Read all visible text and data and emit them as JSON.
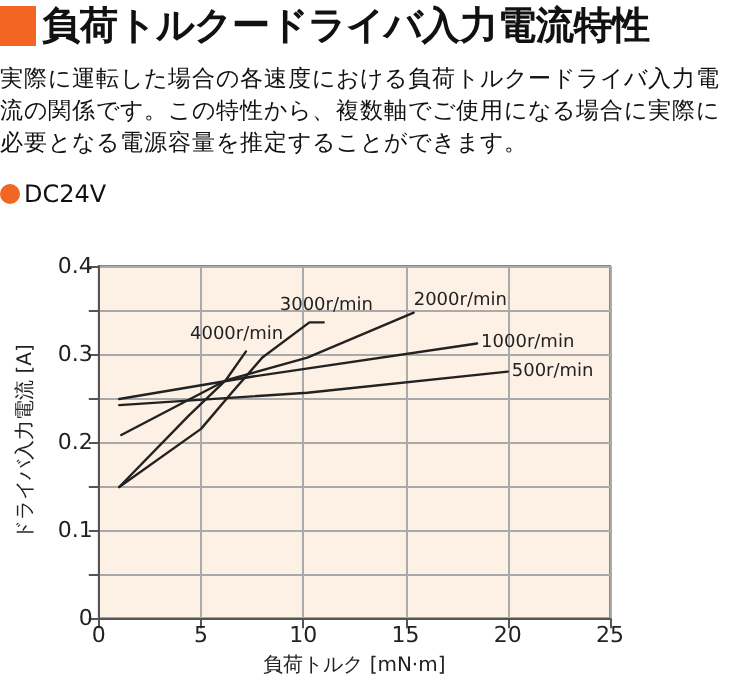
{
  "chart_data": {
    "type": "line",
    "title": "負荷トルクードライバ入力電流特性",
    "subtitle": "実際に運転した場合の各速度における負荷トルクードライバ入力電流の関係です。この特性から、複数軸でご使用になる場合に実際に必要となる電源容量を推定することができます。",
    "legend_title": "DC24V",
    "xlabel": "負荷トルク [mN·m]",
    "ylabel": "ドライバ入力電流 [A]",
    "xlim": [
      0,
      25
    ],
    "xticks": [
      0,
      5,
      10,
      15,
      20,
      25
    ],
    "ylim": [
      0,
      0.4
    ],
    "yticks": [
      0,
      {
        "value": 0.05,
        "label": null
      },
      0.1,
      {
        "value": 0.15,
        "label": null
      },
      0.2,
      {
        "value": 0.25,
        "label": null
      },
      0.3,
      {
        "value": 0.35,
        "label": null
      },
      0.4
    ],
    "grid": true,
    "marker": "none",
    "line_style": "solid",
    "series": [
      {
        "name": "500r/min",
        "color": "#222222",
        "x": [
          1,
          10.2,
          20
        ],
        "values": [
          0.242,
          0.256,
          0.28
        ]
      },
      {
        "name": "1000r/min",
        "color": "#222222",
        "x": [
          1,
          7.4,
          18.5
        ],
        "values": [
          0.249,
          0.274,
          0.312
        ]
      },
      {
        "name": "2000r/min",
        "color": "#222222",
        "x": [
          1.1,
          6.2,
          10.2,
          15.4
        ],
        "values": [
          0.208,
          0.27,
          0.296,
          0.347
        ]
      },
      {
        "name": "3000r/min",
        "color": "#222222",
        "x": [
          1,
          5,
          6.5,
          8,
          10.3,
          11
        ],
        "values": [
          0.149,
          0.215,
          0.256,
          0.296,
          0.336,
          0.336
        ]
      },
      {
        "name": "4000r/min",
        "color": "#222222",
        "x": [
          1,
          4.4,
          6.2,
          7.2
        ],
        "values": [
          0.149,
          0.23,
          0.27,
          0.303
        ]
      }
    ]
  }
}
